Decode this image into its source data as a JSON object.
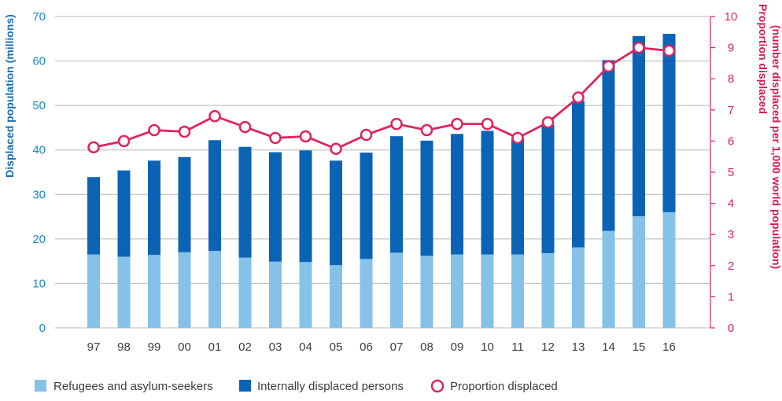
{
  "chart_data": {
    "type": "bar",
    "categories": [
      "97",
      "98",
      "99",
      "00",
      "01",
      "02",
      "03",
      "04",
      "05",
      "06",
      "07",
      "08",
      "09",
      "10",
      "11",
      "12",
      "13",
      "14",
      "15",
      "16"
    ],
    "series": [
      {
        "name": "Refugees and asylum-seekers",
        "type": "bar",
        "stack": "displaced",
        "axis": "left",
        "values": [
          16.5,
          16,
          16.4,
          17,
          17.3,
          15.8,
          14.9,
          14.8,
          14.1,
          15.5,
          16.9,
          16.2,
          16.5,
          16.5,
          16.5,
          16.8,
          18.1,
          21.8,
          25.1,
          26
        ]
      },
      {
        "name": "Internally displaced persons",
        "type": "bar",
        "stack": "displaced",
        "axis": "left",
        "values": [
          17.4,
          19.4,
          21.2,
          21.4,
          24.9,
          24.9,
          24.6,
          25.1,
          23.5,
          23.9,
          26.2,
          25.9,
          27.1,
          27.8,
          26.1,
          28.8,
          32.9,
          38.4,
          40.5,
          40.1
        ]
      },
      {
        "name": "Proportion displaced",
        "type": "line",
        "axis": "right",
        "values": [
          5.8,
          6,
          6.35,
          6.3,
          6.8,
          6.45,
          6.1,
          6.15,
          5.75,
          6.2,
          6.55,
          6.35,
          6.55,
          6.55,
          6.1,
          6.6,
          7.4,
          8.4,
          9,
          8.9
        ]
      }
    ],
    "ylabel": "Displaced population (millions)",
    "y2label_line1": "Proportion displaced",
    "y2label_line2": "(number displaced per 1,000 world population)",
    "ylim": [
      0,
      70
    ],
    "y2lim": [
      0,
      10
    ],
    "yticks": [
      "0",
      "10",
      "20",
      "30",
      "40",
      "50",
      "60",
      "70"
    ],
    "y2ticks": [
      "0",
      "1",
      "2",
      "3",
      "4",
      "5",
      "6",
      "7",
      "8",
      "9",
      "10"
    ],
    "grid": true,
    "legend_position": "bottom",
    "colors": {
      "refugees": "#86c2e8",
      "idp": "#0b63b6",
      "line": "#e0245e",
      "grid": "#b8b8b8",
      "left_axis_text": "#1b8ac8",
      "right_axis_text": "#e0245e"
    }
  },
  "legend": [
    {
      "label": "Refugees and asylum-seekers",
      "icon": "square-swatch"
    },
    {
      "label": "Internally displaced persons",
      "icon": "square-swatch"
    },
    {
      "label": "Proportion displaced",
      "icon": "circle-marker"
    }
  ]
}
